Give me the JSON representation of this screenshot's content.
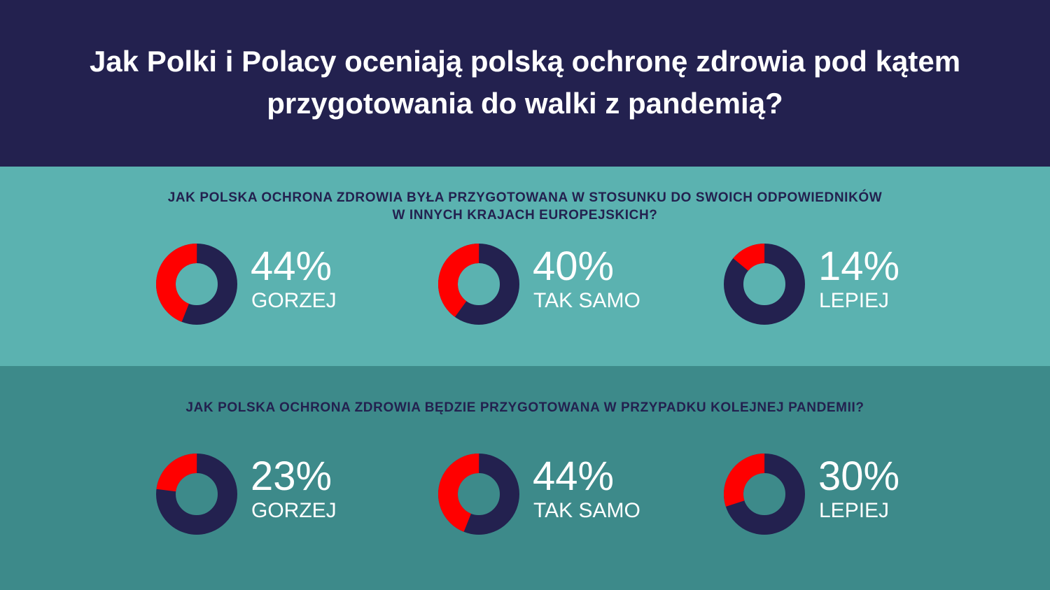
{
  "header": {
    "title_line1": "Jak Polki i Polacy oceniają polską ochronę zdrowia pod kątem",
    "title_line2": "przygotowania do walki z pandemią?"
  },
  "colors": {
    "header_bg": "#23214f",
    "section1_bg": "#5bb2b0",
    "section2_bg": "#3d8a8a",
    "highlight": "#ff0000",
    "remainder": "#23214f"
  },
  "chart_data": [
    {
      "type": "pie",
      "title_line1": "JAK POLSKA OCHRONA ZDROWIA BYŁA PRZYGOTOWANA W STOSUNKU DO SWOICH ODPOWIEDNIKÓW",
      "title_line2": "W INNYCH KRAJACH EUROPEJSKICH?",
      "items": [
        {
          "value": 44,
          "display": "44%",
          "label": "GORZEJ"
        },
        {
          "value": 40,
          "display": "40%",
          "label": "TAK SAMO"
        },
        {
          "value": 14,
          "display": "14%",
          "label": "LEPIEJ"
        }
      ]
    },
    {
      "type": "pie",
      "title_line1": "JAK POLSKA OCHRONA ZDROWIA BĘDZIE PRZYGOTOWANA W PRZYPADKU KOLEJNEJ PANDEMII?",
      "title_line2": "",
      "items": [
        {
          "value": 23,
          "display": "23%",
          "label": "GORZEJ"
        },
        {
          "value": 44,
          "display": "44%",
          "label": "TAK SAMO"
        },
        {
          "value": 30,
          "display": "30%",
          "label": "LEPIEJ"
        }
      ]
    }
  ]
}
